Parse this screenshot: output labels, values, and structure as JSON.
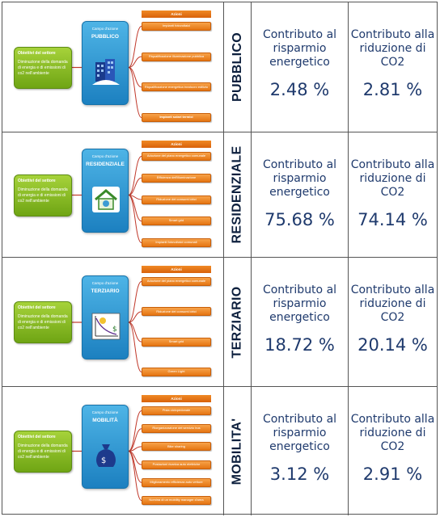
{
  "common": {
    "obiettivo_title": "Obiettivi del settore",
    "obiettivo_text": "Diminuzione della domanda di energia e di emissioni di co2 nell'ambiente",
    "campo_label": "Campo d'azione",
    "azioni_label": "Azioni",
    "energy_label": "Contributo al risparmio energetico",
    "co2_label": "Contributo alla riduzione di CO2"
  },
  "sectors": [
    {
      "name": "PUBBLICO",
      "campo_name": "PUBBLICO",
      "icon": "building-icon",
      "actions": [
        "Impianti fotovoltaici",
        "Riqualificazione illuminazione pubblica",
        "Riqualificazione energetica involucro edilizio",
        "Impianti solari termici"
      ],
      "energy_value": "2.48 %",
      "co2_value": "2.81 %"
    },
    {
      "name": "RESIDENZIALE",
      "campo_name": "RESIDENZIALE",
      "icon": "house-icon",
      "actions": [
        "Adozione del piano energetico comunale",
        "Efficienza dell'illuminazione",
        "Riduzione dei consumi idrici",
        "Smart grid",
        "Impianti fotovoltaici comunali"
      ],
      "energy_value": "75.68 %",
      "co2_value": "74.14 %"
    },
    {
      "name": "TERZIARIO",
      "campo_name": "TERZIARIO",
      "icon": "chart-money-icon",
      "actions": [
        "Adozione del piano energetico comunale",
        "Riduzione dei consumi idrici",
        "Smart grid",
        "Green Light"
      ],
      "energy_value": "18.72 %",
      "co2_value": "20.14 %"
    },
    {
      "name": "MOBILITA'",
      "campo_name": "MOBILITÀ",
      "icon": "money-bag-icon",
      "actions": [
        "Pista ciclopedonale",
        "Riorganizzazione del servizio bus",
        "Bike sharing",
        "Postazioni ricarica auto elettriche",
        "Miglioramento efficienza auto vetture",
        "Nomina di un mobility manager d'area"
      ],
      "energy_value": "3.12 %",
      "co2_value": "2.91 %"
    }
  ],
  "colors": {
    "green": "#7fb51f",
    "blue": "#2a93d2",
    "orange": "#ef8a2a",
    "text_blue": "#1f3a6d",
    "sector_label": "#0c1f3d"
  }
}
